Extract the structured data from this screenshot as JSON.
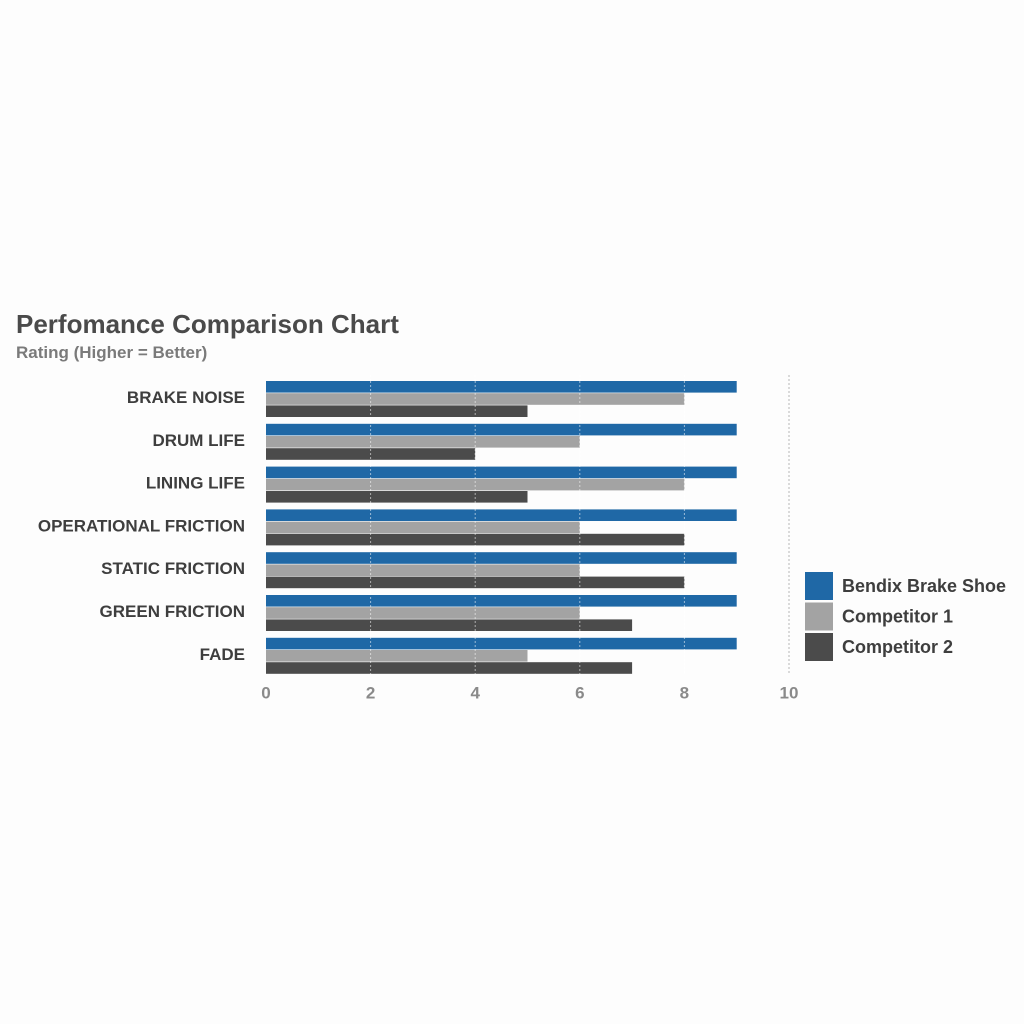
{
  "chart_data": {
    "type": "bar",
    "orientation": "horizontal",
    "title": "Perfomance Comparison Chart",
    "subtitle": "Rating (Higher = Better)",
    "categories": [
      "BRAKE NOISE",
      "DRUM LIFE",
      "LINING LIFE",
      "OPERATIONAL FRICTION",
      "STATIC FRICTION",
      "GREEN FRICTION",
      "FADE"
    ],
    "series": [
      {
        "name": "Bendix Brake Shoe",
        "color": "#1f68a6",
        "values": [
          9,
          9,
          9,
          9,
          9,
          9,
          9
        ]
      },
      {
        "name": "Competitor 1",
        "color": "#a3a3a3",
        "values": [
          8,
          6,
          8,
          6,
          6,
          6,
          5
        ]
      },
      {
        "name": "Competitor 2",
        "color": "#4b4b4b",
        "values": [
          5,
          4,
          5,
          8,
          8,
          7,
          7
        ]
      }
    ],
    "xlim": [
      0,
      10
    ],
    "xticks": [
      "0",
      "2",
      "4",
      "6",
      "8",
      "10"
    ],
    "grid": true,
    "legend_position": "right"
  }
}
